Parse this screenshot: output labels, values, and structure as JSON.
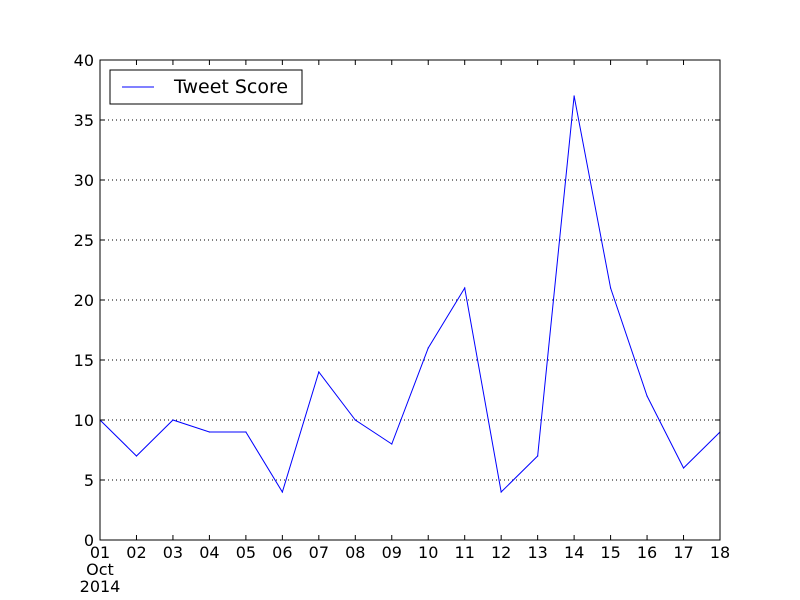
{
  "chart_data": {
    "type": "line",
    "x": [
      "01",
      "02",
      "03",
      "04",
      "05",
      "06",
      "07",
      "08",
      "09",
      "10",
      "11",
      "12",
      "13",
      "14",
      "15",
      "16",
      "17",
      "18"
    ],
    "x_secondary_label": [
      "Oct",
      "2014"
    ],
    "series": [
      {
        "name": "Tweet Score",
        "color": "#0000ff",
        "values": [
          10,
          7,
          10,
          9,
          9,
          4,
          14,
          10,
          8,
          16,
          21,
          4,
          7,
          37,
          21,
          12,
          6,
          9
        ]
      }
    ],
    "y_ticks": [
      "0",
      "5",
      "10",
      "15",
      "20",
      "25",
      "30",
      "35",
      "40"
    ],
    "ylim": [
      0,
      40
    ],
    "grid": "horizontal dotted",
    "legend_position": "top-left",
    "title": "",
    "xlabel": "",
    "ylabel": ""
  }
}
